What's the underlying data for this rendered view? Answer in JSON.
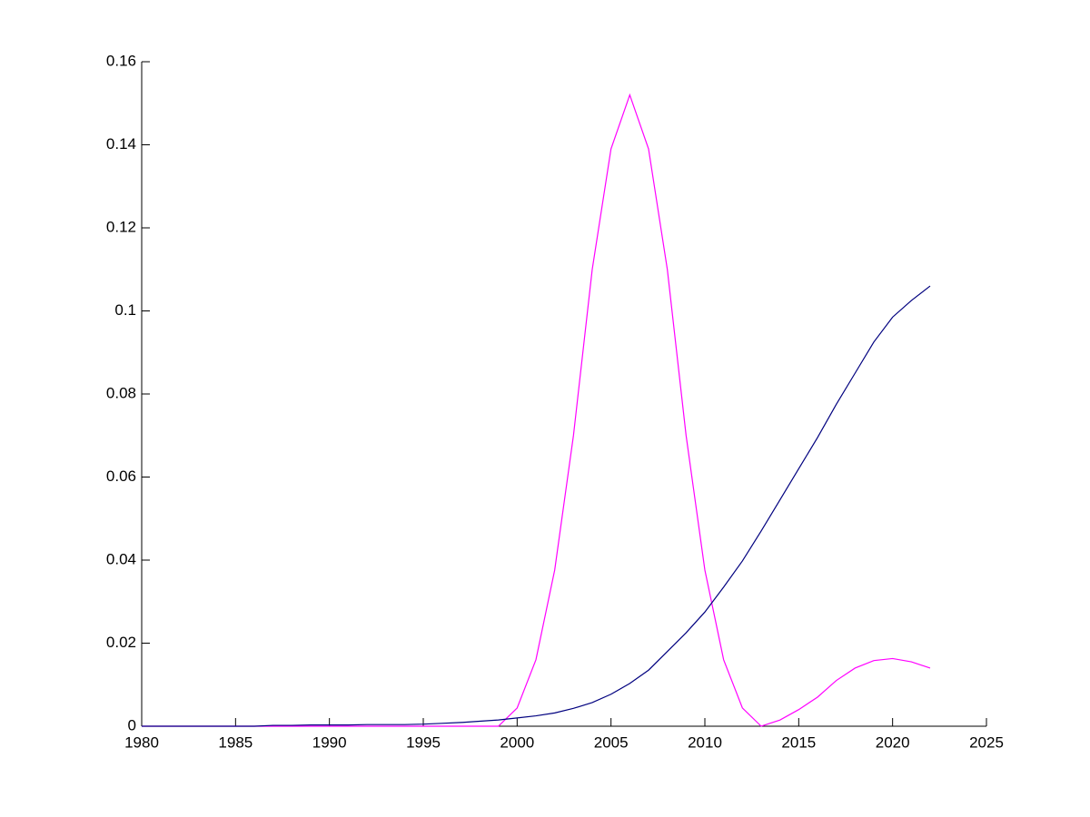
{
  "chart_data": {
    "type": "line",
    "x": [
      1980,
      1981,
      1982,
      1983,
      1984,
      1985,
      1986,
      1987,
      1988,
      1989,
      1990,
      1991,
      1992,
      1993,
      1994,
      1995,
      1996,
      1997,
      1998,
      1999,
      2000,
      2001,
      2002,
      2003,
      2004,
      2005,
      2006,
      2007,
      2008,
      2009,
      2010,
      2011,
      2012,
      2013,
      2014,
      2015,
      2016,
      2017,
      2018,
      2019,
      2020,
      2021,
      2022
    ],
    "series": [
      {
        "color": "#ff00ff",
        "values": [
          0,
          0,
          0,
          0,
          0,
          0,
          0,
          0,
          0,
          0,
          0,
          0,
          0,
          0,
          0,
          0,
          0,
          0,
          0,
          0,
          0.0044,
          0.016,
          0.0376,
          0.07,
          0.11,
          0.139,
          0.152,
          0.139,
          0.11,
          0.07,
          0.0376,
          0.016,
          0.0044,
          0,
          0.0015,
          0.004,
          0.007,
          0.011,
          0.014,
          0.0158,
          0.0163,
          0.0155,
          0.014
        ]
      },
      {
        "color": "#00007f",
        "values": [
          0,
          0,
          0,
          0,
          0,
          0,
          0,
          0.0002,
          0.0002,
          0.0003,
          0.0003,
          0.0003,
          0.0004,
          0.0004,
          0.0004,
          0.0005,
          0.0007,
          0.0009,
          0.0012,
          0.0015,
          0.002,
          0.0025,
          0.0032,
          0.0043,
          0.0057,
          0.0077,
          0.0103,
          0.0135,
          0.018,
          0.0225,
          0.0275,
          0.0335,
          0.0398,
          0.047,
          0.0545,
          0.062,
          0.0695,
          0.0775,
          0.085,
          0.0925,
          0.0985,
          0.1025,
          0.106
        ]
      }
    ],
    "xlim": [
      1980,
      2025
    ],
    "xticks": [
      1980,
      1985,
      1990,
      1995,
      2000,
      2005,
      2010,
      2015,
      2020,
      2025
    ],
    "ylim": [
      0,
      0.16
    ],
    "yticks": [
      0,
      0.02,
      0.04,
      0.06,
      0.08,
      0.1,
      0.12,
      0.14,
      0.16
    ],
    "grid": false
  }
}
